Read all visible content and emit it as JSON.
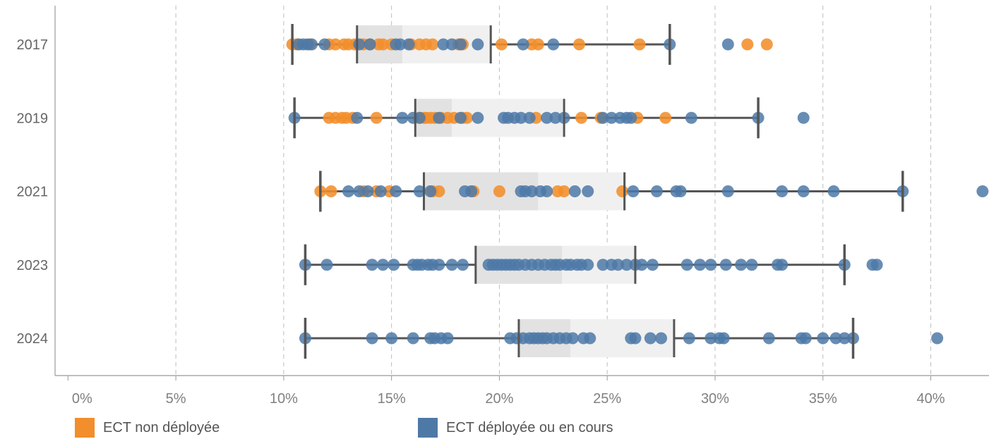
{
  "colors": {
    "non_deployee": "#f28e2b",
    "deployee": "#4e79a7",
    "whisker": "#555555",
    "axis": "#999999",
    "grid": "#bdbdbd",
    "tick_text": "#808080",
    "row_text": "#666666",
    "box_lower": "#e2e2e2",
    "box_upper": "#f0f0f0"
  },
  "legend": [
    {
      "label": "ECT non déployée",
      "series": "non_deployee"
    },
    {
      "label": "ECT déployée ou en cours",
      "series": "deployee"
    }
  ],
  "chart_data": {
    "type": "scatter",
    "title": "",
    "xlabel": "",
    "ylabel": "",
    "xlim": [
      -0.006,
      0.427
    ],
    "x_ticks": [
      {
        "value": 0,
        "label": "0%"
      },
      {
        "value": 0.05,
        "label": "5%"
      },
      {
        "value": 0.1,
        "label": "10%"
      },
      {
        "value": 0.15,
        "label": "15%"
      },
      {
        "value": 0.2,
        "label": "20%"
      },
      {
        "value": 0.25,
        "label": "25%"
      },
      {
        "value": 0.3,
        "label": "30%"
      },
      {
        "value": 0.35,
        "label": "35%"
      },
      {
        "value": 0.4,
        "label": "40%"
      }
    ],
    "grid": "vertical dashed",
    "legend_position": "bottom",
    "rows": [
      {
        "label": "2017",
        "box": {
          "whisker_low": 0.104,
          "q1": 0.134,
          "median": 0.155,
          "q3": 0.196,
          "whisker_high": 0.279
        },
        "non_deployee": [
          0.104,
          0.106,
          0.112,
          0.121,
          0.124,
          0.128,
          0.13,
          0.133,
          0.137,
          0.14,
          0.144,
          0.146,
          0.15,
          0.159,
          0.163,
          0.166,
          0.169,
          0.181,
          0.183,
          0.201,
          0.215,
          0.218,
          0.237,
          0.265,
          0.315,
          0.324
        ],
        "deployee": [
          0.107,
          0.109,
          0.111,
          0.113,
          0.119,
          0.135,
          0.14,
          0.152,
          0.154,
          0.158,
          0.174,
          0.178,
          0.182,
          0.19,
          0.211,
          0.225,
          0.279,
          0.306
        ]
      },
      {
        "label": "2019",
        "box": {
          "whisker_low": 0.105,
          "q1": 0.161,
          "median": 0.178,
          "q3": 0.23,
          "whisker_high": 0.32
        },
        "non_deployee": [
          0.121,
          0.124,
          0.127,
          0.129,
          0.132,
          0.143,
          0.163,
          0.165,
          0.166,
          0.168,
          0.17,
          0.173,
          0.176,
          0.179,
          0.183,
          0.185,
          0.217,
          0.238,
          0.247,
          0.264,
          0.277
        ],
        "deployee": [
          0.105,
          0.134,
          0.155,
          0.16,
          0.163,
          0.172,
          0.182,
          0.19,
          0.202,
          0.204,
          0.207,
          0.21,
          0.214,
          0.222,
          0.226,
          0.23,
          0.248,
          0.252,
          0.256,
          0.259,
          0.261,
          0.289,
          0.32,
          0.341
        ]
      },
      {
        "label": "2021",
        "box": {
          "whisker_low": 0.117,
          "q1": 0.165,
          "median": 0.218,
          "q3": 0.258,
          "whisker_high": 0.387
        },
        "non_deployee": [
          0.117,
          0.122,
          0.137,
          0.143,
          0.149,
          0.169,
          0.172,
          0.188,
          0.2,
          0.227,
          0.23,
          0.257
        ],
        "deployee": [
          0.13,
          0.135,
          0.139,
          0.145,
          0.152,
          0.163,
          0.168,
          0.184,
          0.187,
          0.21,
          0.212,
          0.215,
          0.219,
          0.222,
          0.235,
          0.241,
          0.262,
          0.273,
          0.282,
          0.284,
          0.306,
          0.331,
          0.341,
          0.355,
          0.387,
          0.424
        ]
      },
      {
        "label": "2023",
        "box": {
          "whisker_low": 0.11,
          "q1": 0.189,
          "median": 0.229,
          "q3": 0.263,
          "whisker_high": 0.36
        },
        "non_deployee": [],
        "deployee": [
          0.11,
          0.12,
          0.141,
          0.146,
          0.151,
          0.16,
          0.162,
          0.164,
          0.167,
          0.169,
          0.172,
          0.178,
          0.183,
          0.195,
          0.197,
          0.199,
          0.201,
          0.203,
          0.205,
          0.207,
          0.209,
          0.212,
          0.215,
          0.218,
          0.221,
          0.224,
          0.226,
          0.228,
          0.231,
          0.233,
          0.236,
          0.238,
          0.241,
          0.248,
          0.252,
          0.255,
          0.259,
          0.263,
          0.266,
          0.271,
          0.287,
          0.293,
          0.298,
          0.305,
          0.312,
          0.317,
          0.329,
          0.331,
          0.36,
          0.373,
          0.375
        ]
      },
      {
        "label": "2024",
        "box": {
          "whisker_low": 0.11,
          "q1": 0.209,
          "median": 0.233,
          "q3": 0.281,
          "whisker_high": 0.364
        },
        "non_deployee": [],
        "deployee": [
          0.11,
          0.141,
          0.15,
          0.16,
          0.168,
          0.17,
          0.173,
          0.176,
          0.205,
          0.208,
          0.211,
          0.214,
          0.216,
          0.218,
          0.22,
          0.222,
          0.225,
          0.228,
          0.231,
          0.234,
          0.239,
          0.242,
          0.261,
          0.263,
          0.27,
          0.275,
          0.288,
          0.298,
          0.302,
          0.304,
          0.325,
          0.34,
          0.342,
          0.35,
          0.356,
          0.36,
          0.364,
          0.403
        ]
      }
    ]
  }
}
